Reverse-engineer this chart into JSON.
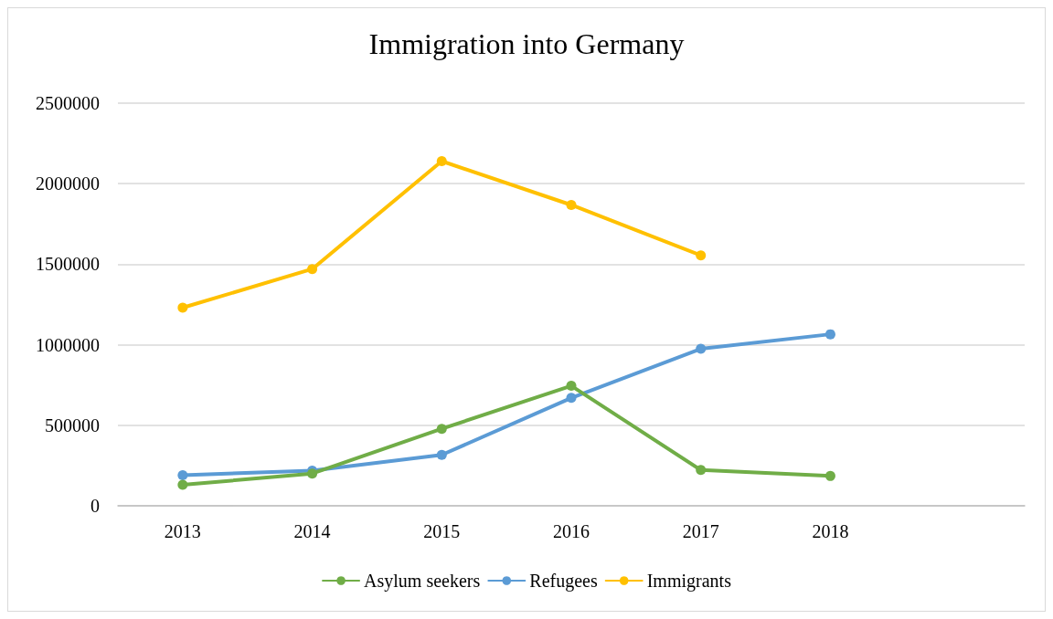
{
  "chart_data": {
    "type": "line",
    "title": "Immigration into Germany",
    "categories": [
      "2013",
      "2014",
      "2015",
      "2016",
      "2017",
      "2018",
      null
    ],
    "series": [
      {
        "name": "Asylum seekers",
        "color": "#70ad47",
        "values": [
          130000,
          200000,
          478000,
          745000,
          222000,
          185000,
          null
        ]
      },
      {
        "name": "Refugees",
        "color": "#5b9bd5",
        "values": [
          190000,
          218000,
          316000,
          670000,
          975000,
          1065000,
          null
        ]
      },
      {
        "name": "Immigrants",
        "color": "#ffc000",
        "values": [
          1230000,
          1470000,
          2140000,
          1868000,
          1555000,
          null,
          null
        ]
      }
    ],
    "ylim": [
      0,
      2500000
    ],
    "yticks": [
      0,
      500000,
      1000000,
      1500000,
      2000000,
      2500000
    ],
    "grid": "y",
    "legend": "bottom",
    "marker": "circle",
    "line_style": "solid"
  }
}
